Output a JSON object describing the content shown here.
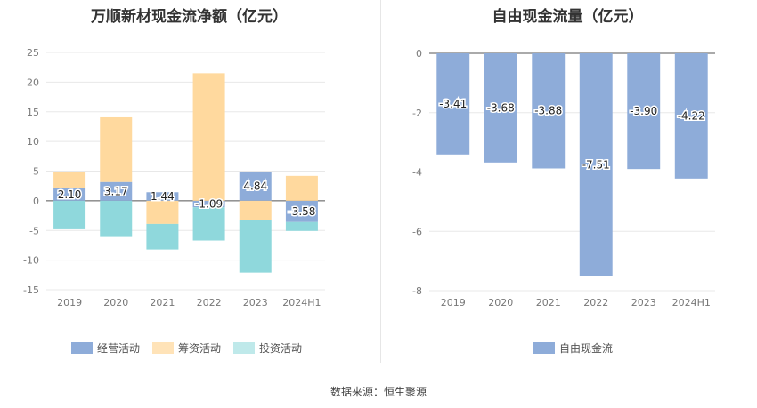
{
  "source_text": "数据来源：恒生聚源",
  "chart_data": [
    {
      "type": "bar",
      "stacked": true,
      "title": "万顺新材现金流净额（亿元）",
      "categories": [
        "2019",
        "2020",
        "2021",
        "2022",
        "2023",
        "2024H1"
      ],
      "ylim": [
        -15,
        25
      ],
      "yticks": [
        25,
        20,
        15,
        10,
        5,
        0,
        -5,
        -10,
        -15
      ],
      "grid": true,
      "legend_position": "bottom",
      "series": [
        {
          "name": "经营活动",
          "color": "#8eacd9",
          "values": [
            2.1,
            3.17,
            1.44,
            -1.09,
            4.84,
            -3.58
          ],
          "data_labels": [
            "2.10",
            "3.17",
            "1.44",
            "-1.09",
            "4.84",
            "-3.58"
          ]
        },
        {
          "name": "筹资活动",
          "color": "#ffd99e",
          "values": [
            2.7,
            10.9,
            -3.9,
            21.5,
            -3.2,
            4.2
          ]
        },
        {
          "name": "投资活动",
          "color": "#8fd8dc",
          "values": [
            -4.8,
            -6.1,
            -4.3,
            -5.6,
            -8.9,
            -1.5
          ]
        }
      ]
    },
    {
      "type": "bar",
      "title": "自由现金流量（亿元）",
      "categories": [
        "2019",
        "2020",
        "2021",
        "2022",
        "2023",
        "2024H1"
      ],
      "ylim": [
        -8,
        0
      ],
      "yticks": [
        0,
        -2,
        -4,
        -6,
        -8
      ],
      "grid": true,
      "legend_position": "bottom",
      "series": [
        {
          "name": "自由现金流",
          "color": "#8eacd9",
          "values": [
            -3.41,
            -3.68,
            -3.88,
            -7.51,
            -3.9,
            -4.22
          ],
          "data_labels": [
            "-3.41",
            "-3.68",
            "-3.88",
            "-7.51",
            "-3.90",
            "-4.22"
          ]
        }
      ]
    }
  ]
}
